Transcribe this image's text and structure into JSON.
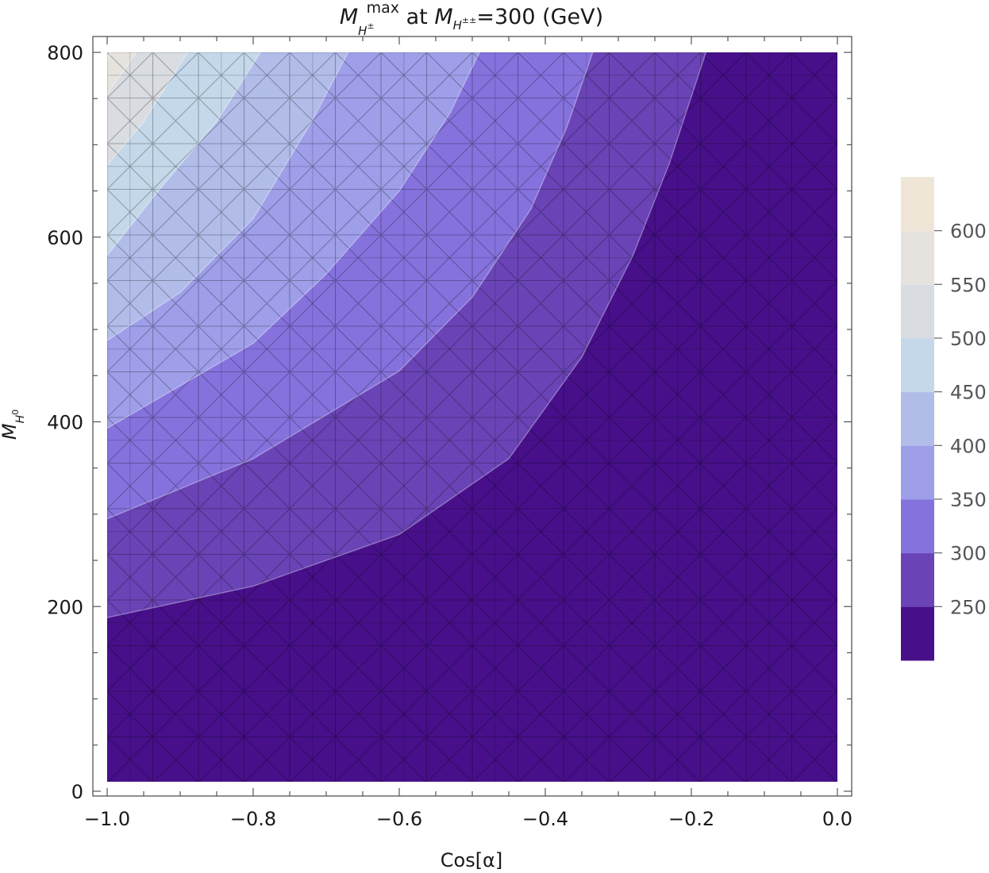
{
  "chart_data": {
    "type": "contour",
    "title": {
      "m": "M",
      "sub": "H",
      "sub_sup": "±",
      "sup": "max",
      "mid": " at ",
      "m2": "M",
      "sub2": "H",
      "sub2_sup": "±±",
      "tail": "=300 (GeV)"
    },
    "xlabel": "Cos[α]",
    "ylabel": {
      "m": "M",
      "sub": "H",
      "sub_sup": "0"
    },
    "xlim": [
      -1.0,
      0.0
    ],
    "ylim": [
      0,
      800
    ],
    "x_ticks": [
      {
        "value": -1.0,
        "label": "−1.0"
      },
      {
        "value": -0.8,
        "label": "−0.8"
      },
      {
        "value": -0.6,
        "label": "−0.6"
      },
      {
        "value": -0.4,
        "label": "−0.4"
      },
      {
        "value": -0.2,
        "label": "−0.2"
      },
      {
        "value": 0.0,
        "label": "0.0"
      }
    ],
    "y_ticks": [
      {
        "value": 0,
        "label": "0"
      },
      {
        "value": 200,
        "label": "200"
      },
      {
        "value": 400,
        "label": "400"
      },
      {
        "value": 600,
        "label": "600"
      },
      {
        "value": 800,
        "label": "800"
      }
    ],
    "colorbar": {
      "levels": [
        250,
        300,
        350,
        400,
        450,
        500,
        550,
        600
      ],
      "range": [
        200,
        650
      ],
      "labels": [
        "250",
        "300",
        "350",
        "400",
        "450",
        "500",
        "550",
        "600"
      ]
    },
    "band_colors": [
      "#47108a",
      "#6a44b6",
      "#8672dd",
      "#9e9ee9",
      "#b2bce9",
      "#c4d8ea",
      "#d9dde2",
      "#e6e3df",
      "#efe6d8"
    ],
    "contours": [
      {
        "level": 250,
        "points": [
          [
            -1.0,
            188
          ],
          [
            -0.8,
            222
          ],
          [
            -0.6,
            278
          ],
          [
            -0.45,
            360
          ],
          [
            -0.35,
            470
          ],
          [
            -0.28,
            580
          ],
          [
            -0.23,
            680
          ],
          [
            -0.18,
            800
          ]
        ]
      },
      {
        "level": 300,
        "points": [
          [
            -1.0,
            295
          ],
          [
            -0.8,
            360
          ],
          [
            -0.6,
            455
          ],
          [
            -0.5,
            535
          ],
          [
            -0.42,
            630
          ],
          [
            -0.37,
            720
          ],
          [
            -0.335,
            800
          ]
        ]
      },
      {
        "level": 350,
        "points": [
          [
            -1.0,
            393
          ],
          [
            -0.8,
            485
          ],
          [
            -0.7,
            560
          ],
          [
            -0.6,
            650
          ],
          [
            -0.53,
            735
          ],
          [
            -0.49,
            800
          ]
        ]
      },
      {
        "level": 400,
        "points": [
          [
            -1.0,
            488
          ],
          [
            -0.9,
            540
          ],
          [
            -0.8,
            620
          ],
          [
            -0.72,
            725
          ],
          [
            -0.67,
            800
          ]
        ]
      },
      {
        "level": 450,
        "points": [
          [
            -1.0,
            580
          ],
          [
            -0.93,
            650
          ],
          [
            -0.85,
            725
          ],
          [
            -0.79,
            800
          ]
        ]
      },
      {
        "level": 500,
        "points": [
          [
            -1.0,
            678
          ],
          [
            -0.95,
            725
          ],
          [
            -0.89,
            800
          ]
        ]
      },
      {
        "level": 550,
        "points": [
          [
            -1.0,
            755
          ],
          [
            -0.96,
            800
          ]
        ]
      },
      {
        "level": 600,
        "points": [
          [
            -1.0,
            790
          ],
          [
            -0.995,
            800
          ]
        ]
      }
    ]
  }
}
